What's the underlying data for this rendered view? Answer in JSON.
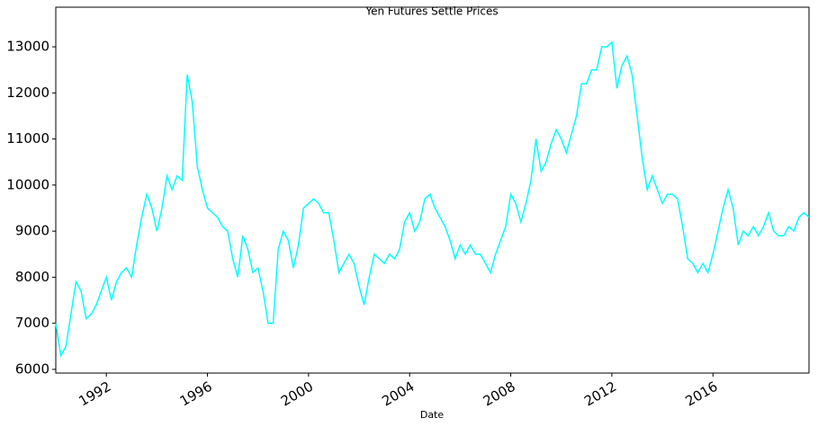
{
  "chart_data": {
    "type": "line",
    "title": "Yen Futures Settle Prices",
    "x_label": "Date",
    "x": [
      1990.0,
      1990.2,
      1990.4,
      1990.6,
      1990.8,
      1991.0,
      1991.2,
      1991.4,
      1991.6,
      1991.8,
      1992.0,
      1992.2,
      1992.4,
      1992.6,
      1992.8,
      1993.0,
      1993.2,
      1993.4,
      1993.6,
      1993.8,
      1994.0,
      1994.2,
      1994.4,
      1994.6,
      1994.8,
      1995.0,
      1995.2,
      1995.4,
      1995.6,
      1995.8,
      1996.0,
      1996.2,
      1996.4,
      1996.6,
      1996.8,
      1997.0,
      1997.2,
      1997.4,
      1997.6,
      1997.8,
      1998.0,
      1998.2,
      1998.4,
      1998.6,
      1998.8,
      1999.0,
      1999.2,
      1999.4,
      1999.6,
      1999.8,
      2000.0,
      2000.2,
      2000.4,
      2000.6,
      2000.8,
      2001.0,
      2001.2,
      2001.4,
      2001.6,
      2001.8,
      2002.0,
      2002.2,
      2002.4,
      2002.6,
      2002.8,
      2003.0,
      2003.2,
      2003.4,
      2003.6,
      2003.8,
      2004.0,
      2004.2,
      2004.4,
      2004.6,
      2004.8,
      2005.0,
      2005.2,
      2005.4,
      2005.6,
      2005.8,
      2006.0,
      2006.2,
      2006.4,
      2006.6,
      2006.8,
      2007.0,
      2007.2,
      2007.4,
      2007.6,
      2007.8,
      2008.0,
      2008.2,
      2008.4,
      2008.6,
      2008.8,
      2009.0,
      2009.2,
      2009.4,
      2009.6,
      2009.8,
      2010.0,
      2010.2,
      2010.4,
      2010.6,
      2010.8,
      2011.0,
      2011.2,
      2011.4,
      2011.6,
      2011.8,
      2012.0,
      2012.2,
      2012.4,
      2012.6,
      2012.8,
      2013.0,
      2013.2,
      2013.4,
      2013.6,
      2013.8,
      2014.0,
      2014.2,
      2014.4,
      2014.6,
      2014.8,
      2015.0,
      2015.2,
      2015.4,
      2015.6,
      2015.8,
      2016.0,
      2016.2,
      2016.4,
      2016.6,
      2016.8,
      2017.0,
      2017.2,
      2017.4,
      2017.6,
      2017.8,
      2018.0,
      2018.2,
      2018.4,
      2018.6,
      2018.8,
      2019.0,
      2019.2,
      2019.4,
      2019.6,
      2019.8
    ],
    "values": [
      7000,
      6300,
      6500,
      7200,
      7900,
      7700,
      7100,
      7200,
      7400,
      7700,
      8000,
      7500,
      7900,
      8100,
      8200,
      8000,
      8700,
      9300,
      9800,
      9500,
      9000,
      9500,
      10200,
      9900,
      10200,
      10100,
      12400,
      11800,
      10400,
      9900,
      9500,
      9400,
      9300,
      9100,
      9000,
      8400,
      8000,
      8900,
      8600,
      8100,
      8200,
      7700,
      7000,
      7000,
      8600,
      9000,
      8800,
      8200,
      8700,
      9500,
      9600,
      9700,
      9600,
      9400,
      9400,
      8800,
      8100,
      8300,
      8500,
      8300,
      7800,
      7400,
      8000,
      8500,
      8400,
      8300,
      8500,
      8400,
      8600,
      9200,
      9400,
      9000,
      9200,
      9700,
      9800,
      9500,
      9300,
      9100,
      8800,
      8400,
      8700,
      8500,
      8700,
      8500,
      8500,
      8300,
      8100,
      8500,
      8800,
      9100,
      9800,
      9600,
      9200,
      9600,
      10100,
      11000,
      10300,
      10500,
      10900,
      11200,
      11000,
      10700,
      11100,
      11500,
      12200,
      12200,
      12500,
      12500,
      13000,
      13000,
      13100,
      12100,
      12600,
      12800,
      12400,
      11500,
      10600,
      9900,
      10200,
      9900,
      9600,
      9800,
      9800,
      9700,
      9100,
      8400,
      8300,
      8100,
      8300,
      8100,
      8500,
      9000,
      9500,
      9900,
      9500,
      8700,
      9000,
      8900,
      9100,
      8900,
      9100,
      9400,
      9000,
      8900,
      8900,
      9100,
      9000,
      9300,
      9400,
      9300
    ],
    "color": "#00ffff",
    "xlim": [
      1990.0,
      2019.8
    ],
    "xticks": [
      1992,
      1996,
      2000,
      2004,
      2008,
      2012,
      2016
    ],
    "ylim": [
      5920,
      13860
    ],
    "yticks": [
      6000,
      7000,
      8000,
      9000,
      10000,
      11000,
      12000,
      13000
    ]
  }
}
